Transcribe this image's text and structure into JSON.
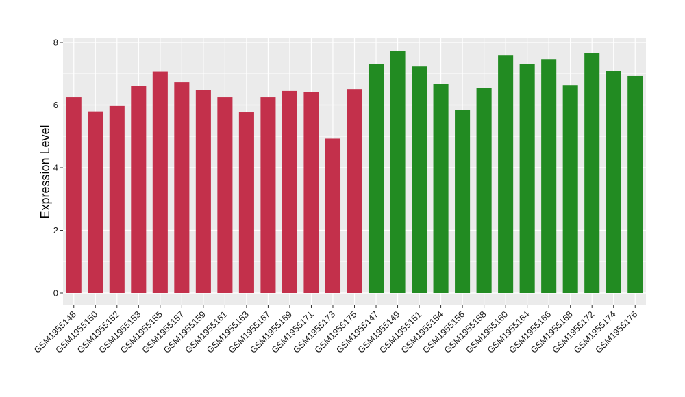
{
  "chart_data": {
    "type": "bar",
    "title": "",
    "xlabel": "",
    "ylabel": "Expression Level",
    "ylim": [
      0,
      8.2
    ],
    "yticks": [
      0,
      2,
      4,
      6,
      8
    ],
    "grid": true,
    "legend": "none",
    "background_color": "#ebebeb",
    "grid_color": "#ffffff",
    "categories": [
      "GSM1955148",
      "GSM1955150",
      "GSM1955152",
      "GSM1955153",
      "GSM1955155",
      "GSM1955157",
      "GSM1955159",
      "GSM1955161",
      "GSM1955163",
      "GSM1955167",
      "GSM1955169",
      "GSM1955171",
      "GSM1955173",
      "GSM1955175",
      "GSM1955147",
      "GSM1955149",
      "GSM1955151",
      "GSM1955154",
      "GSM1955156",
      "GSM1955158",
      "GSM1955160",
      "GSM1955164",
      "GSM1955166",
      "GSM1955168",
      "GSM1955172",
      "GSM1955174",
      "GSM1955176"
    ],
    "values": [
      6.25,
      5.8,
      5.97,
      6.62,
      7.07,
      6.73,
      6.49,
      6.25,
      5.77,
      6.25,
      6.45,
      6.41,
      4.93,
      6.51,
      7.32,
      7.72,
      7.23,
      6.68,
      5.84,
      6.54,
      7.58,
      7.32,
      7.47,
      6.64,
      7.67,
      7.1,
      6.93
    ],
    "colors": [
      "#c3304b",
      "#c3304b",
      "#c3304b",
      "#c3304b",
      "#c3304b",
      "#c3304b",
      "#c3304b",
      "#c3304b",
      "#c3304b",
      "#c3304b",
      "#c3304b",
      "#c3304b",
      "#c3304b",
      "#c3304b",
      "#228b22",
      "#228b22",
      "#228b22",
      "#228b22",
      "#228b22",
      "#228b22",
      "#228b22",
      "#228b22",
      "#228b22",
      "#228b22",
      "#228b22",
      "#228b22",
      "#228b22"
    ]
  }
}
